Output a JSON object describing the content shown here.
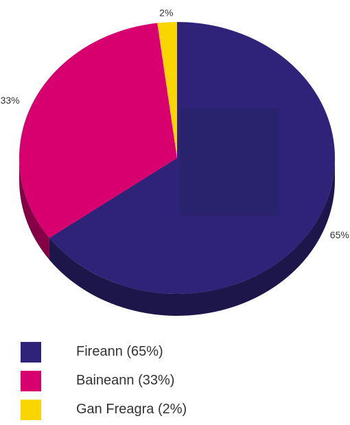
{
  "chart_data": {
    "type": "pie",
    "style": "3d",
    "slices": [
      {
        "label": "Fireann (65%)",
        "value": 65,
        "display": "65%",
        "color": "#2e2378"
      },
      {
        "label": "Baineann (33%)",
        "value": 33,
        "display": "33%",
        "color": "#d8006f"
      },
      {
        "label": "Gan Freagra (2%)",
        "value": 2,
        "display": "2%",
        "color": "#f9d501"
      }
    ],
    "legend_position": "bottom"
  }
}
